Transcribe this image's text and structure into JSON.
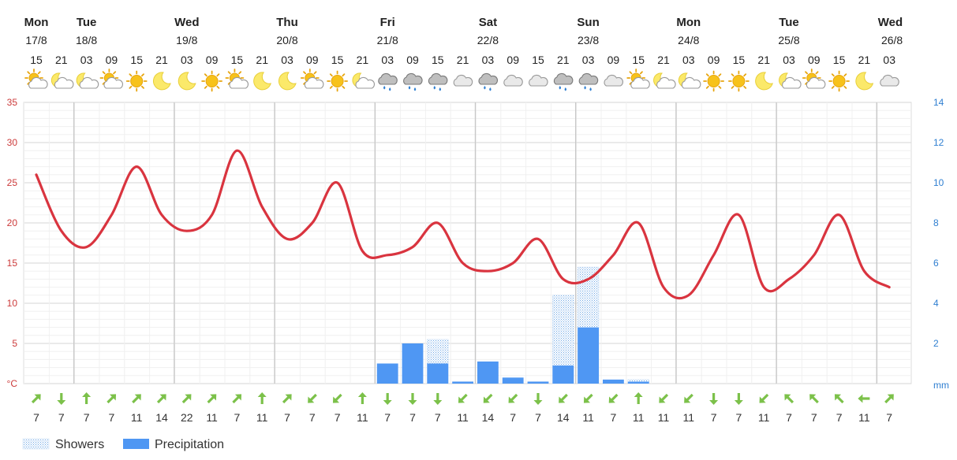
{
  "chart_data": {
    "type": "line+bar",
    "days": [
      {
        "name": "Mon",
        "date": "17/8",
        "slot": 0
      },
      {
        "name": "Tue",
        "date": "18/8",
        "slot": 2
      },
      {
        "name": "Wed",
        "date": "19/8",
        "slot": 6
      },
      {
        "name": "Thu",
        "date": "20/8",
        "slot": 10
      },
      {
        "name": "Fri",
        "date": "21/8",
        "slot": 14
      },
      {
        "name": "Sat",
        "date": "22/8",
        "slot": 18
      },
      {
        "name": "Sun",
        "date": "23/8",
        "slot": 22
      },
      {
        "name": "Mon",
        "date": "24/8",
        "slot": 26
      },
      {
        "name": "Tue",
        "date": "25/8",
        "slot": 30
      },
      {
        "name": "Wed",
        "date": "26/8",
        "slot": 34
      }
    ],
    "hours": [
      "15",
      "21",
      "03",
      "09",
      "15",
      "21",
      "03",
      "09",
      "15",
      "21",
      "03",
      "09",
      "15",
      "21",
      "03",
      "09",
      "15",
      "21",
      "03",
      "09",
      "15",
      "21",
      "03",
      "09",
      "15",
      "21",
      "03",
      "09",
      "15",
      "21",
      "03",
      "09",
      "15",
      "21",
      "03"
    ],
    "icons": [
      "sun-cloud-icon",
      "moon-cloud-icon",
      "moon-cloud-icon",
      "sun-cloud-icon",
      "sun-icon",
      "moon-icon",
      "moon-icon",
      "sun-icon",
      "sun-cloud-icon",
      "moon-icon",
      "moon-icon",
      "sun-cloud-icon",
      "sun-icon",
      "moon-cloud-icon",
      "rain-cloud-icon",
      "rain-cloud-icon",
      "rain-cloud-icon",
      "cloud-icon",
      "rain-cloud-icon",
      "cloud-icon",
      "cloud-icon",
      "rain-cloud-icon",
      "rain-cloud-icon",
      "cloud-icon",
      "sun-cloud-icon",
      "moon-cloud-icon",
      "moon-cloud-icon",
      "sun-icon",
      "sun-icon",
      "moon-icon",
      "moon-cloud-icon",
      "sun-cloud-icon",
      "sun-icon",
      "moon-icon",
      "cloud-icon"
    ],
    "temperature_c": [
      26,
      19,
      17,
      21,
      27,
      21,
      19,
      21,
      29,
      22,
      18,
      20,
      25,
      16.5,
      16,
      17,
      20,
      15,
      14,
      15,
      18,
      13,
      13,
      16,
      20,
      12,
      11,
      16,
      21,
      12,
      13,
      16,
      21,
      14,
      12
    ],
    "precipitation_mm": [
      0,
      0,
      0,
      0,
      0,
      0,
      0,
      0,
      0,
      0,
      0,
      0,
      0,
      0,
      1,
      2,
      1,
      0.1,
      1.1,
      0.3,
      0.1,
      0.9,
      2.8,
      0.2,
      0.1,
      0,
      0,
      0,
      0,
      0,
      0,
      0,
      0,
      0,
      0
    ],
    "showers_mm": [
      0,
      0,
      0,
      0,
      0,
      0,
      0,
      0,
      0,
      0,
      0,
      0,
      0,
      0,
      0,
      0,
      2.2,
      0,
      0,
      0,
      0,
      4.4,
      5.8,
      0,
      0.2,
      0,
      0,
      0,
      0,
      0,
      0,
      0,
      0,
      0,
      0
    ],
    "wind_dir_deg": [
      45,
      180,
      0,
      45,
      45,
      45,
      45,
      45,
      45,
      0,
      45,
      225,
      225,
      0,
      180,
      180,
      180,
      225,
      225,
      225,
      180,
      225,
      225,
      225,
      0,
      225,
      225,
      180,
      180,
      225,
      315,
      315,
      315,
      270,
      45
    ],
    "wind_speed": [
      "7",
      "7",
      "7",
      "7",
      "11",
      "14",
      "22",
      "11",
      "7",
      "11",
      "7",
      "7",
      "7",
      "11",
      "7",
      "7",
      "7",
      "11",
      "14",
      "7",
      "7",
      "14",
      "11",
      "7",
      "11",
      "11",
      "11",
      "7",
      "7",
      "11",
      "7",
      "7",
      "7",
      "11",
      "7"
    ],
    "y_left": {
      "unit": "°C",
      "min": 0,
      "max": 35,
      "ticks": [
        "35",
        "30",
        "25",
        "20",
        "15",
        "10",
        "5"
      ]
    },
    "y_right": {
      "unit": "mm",
      "min": 0,
      "max": 14,
      "ticks": [
        "14",
        "12",
        "10",
        "8",
        "6",
        "4",
        "2"
      ]
    },
    "legend": [
      {
        "name": "Showers"
      },
      {
        "name": "Precipitation"
      }
    ],
    "colors": {
      "temperature": "#d9343f",
      "precipitation": "#4f97f3",
      "showers": "#6fa8e6",
      "wind_arrow": "#7cc14a",
      "grid": "#e3e3e3",
      "day_grid": "#c8c8c8",
      "left_axis": "#cc3a3a",
      "right_axis": "#2f7fd1"
    }
  }
}
